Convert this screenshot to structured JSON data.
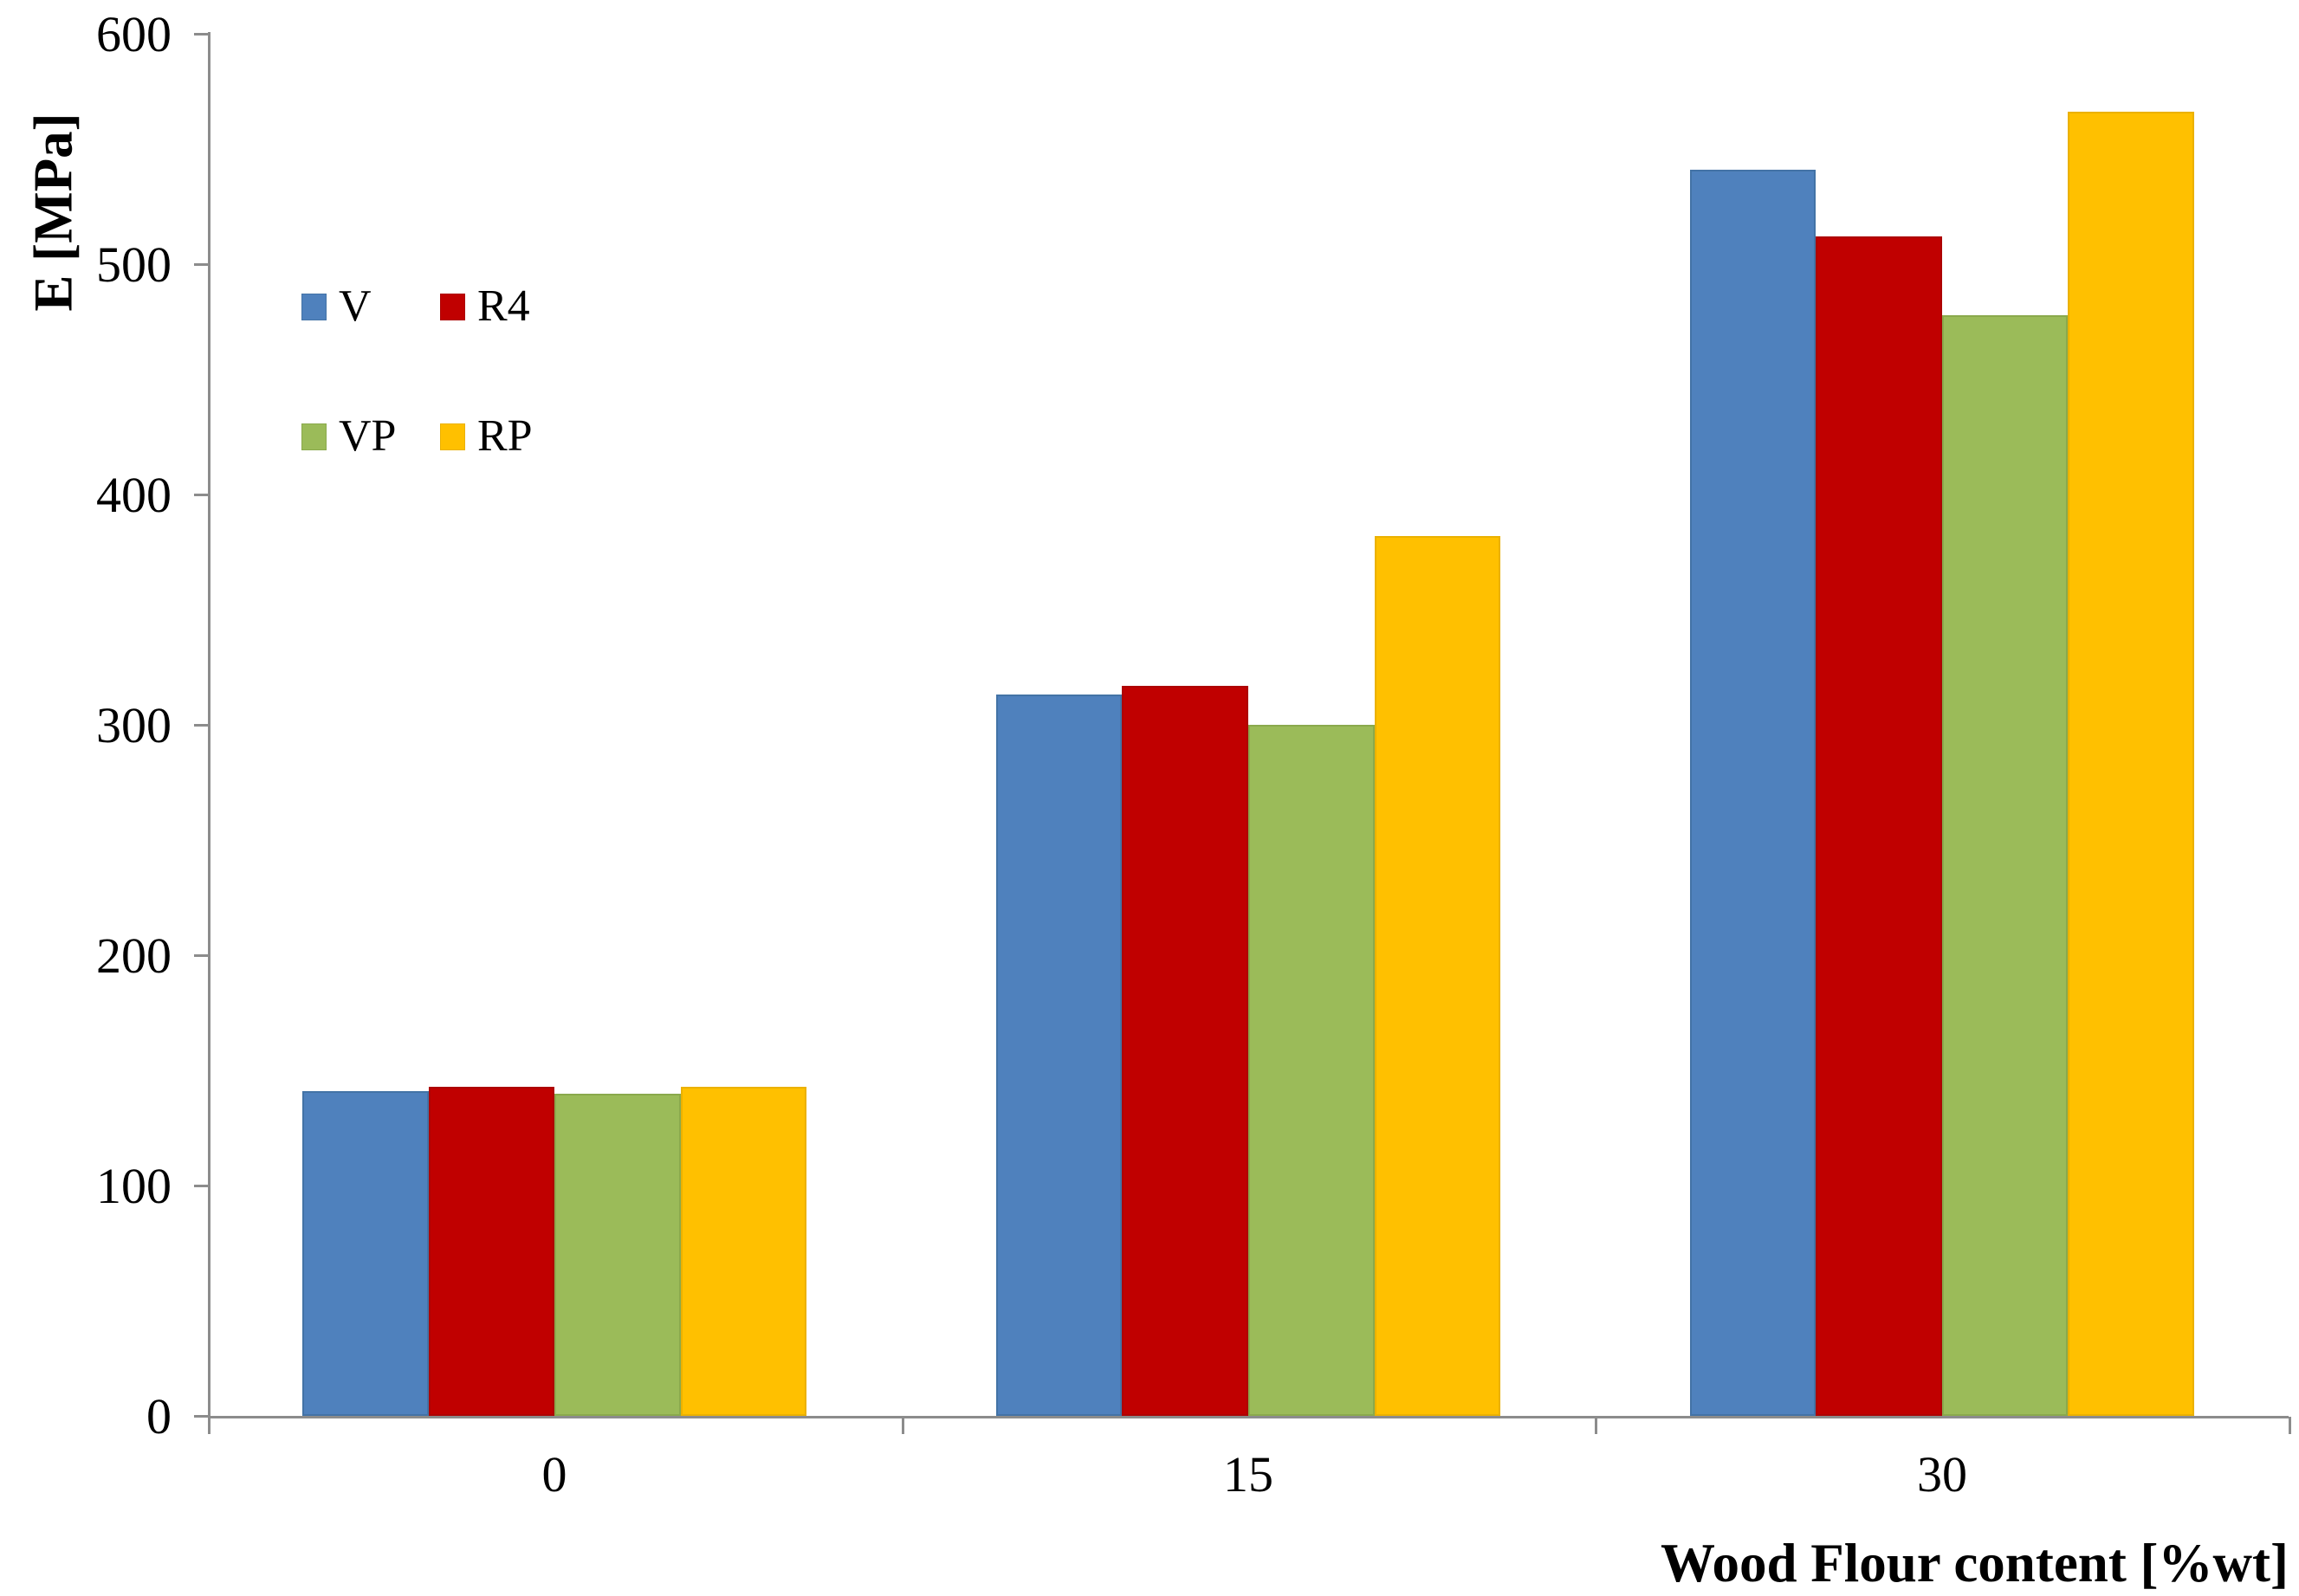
{
  "chart_data": {
    "type": "bar",
    "title": "",
    "xlabel": "Wood Flour content [%wt]",
    "ylabel": "E [MPa]",
    "categories": [
      "0",
      "15",
      "30"
    ],
    "series": [
      {
        "name": "V",
        "color": "#4F81BD",
        "border_color": "#4373A6",
        "values": [
          141,
          313,
          541
        ]
      },
      {
        "name": "R4",
        "color": "#C00000",
        "border_color": "#AD0404",
        "values": [
          143,
          317,
          512
        ]
      },
      {
        "name": "VP",
        "color": "#9BBB59",
        "border_color": "#8AA94C",
        "values": [
          140,
          300,
          478
        ]
      },
      {
        "name": "RP",
        "color": "#FFC000",
        "border_color": "#EBB100",
        "values": [
          143,
          382,
          566
        ]
      }
    ],
    "ylim": [
      0,
      600
    ],
    "ytick_step": 100,
    "yticks": [
      0,
      100,
      200,
      300,
      400,
      500,
      600
    ],
    "grid": false,
    "legend_position": "upper-left",
    "axis_color": "#8C8C8C",
    "text_color": "#000000",
    "background": "#FFFFFF"
  }
}
